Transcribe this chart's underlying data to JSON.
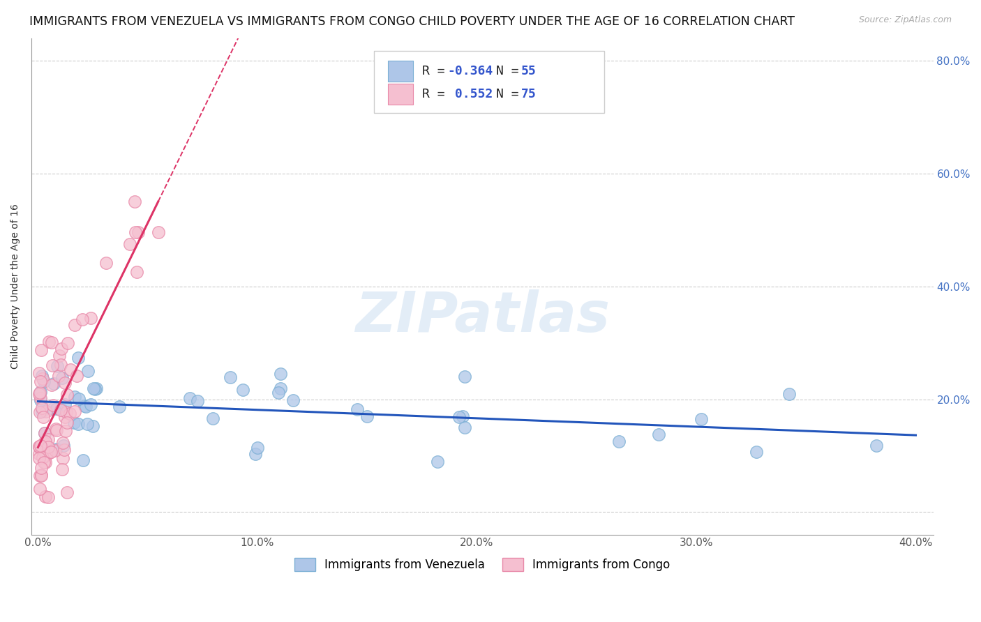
{
  "title": "IMMIGRANTS FROM VENEZUELA VS IMMIGRANTS FROM CONGO CHILD POVERTY UNDER THE AGE OF 16 CORRELATION CHART",
  "source": "Source: ZipAtlas.com",
  "ylabel": "Child Poverty Under the Age of 16",
  "xlim": [
    -0.003,
    0.408
  ],
  "ylim": [
    -0.04,
    0.84
  ],
  "xticks": [
    0.0,
    0.1,
    0.2,
    0.3,
    0.4
  ],
  "yticks": [
    0.0,
    0.2,
    0.4,
    0.6,
    0.8
  ],
  "xtick_labels": [
    "0.0%",
    "10.0%",
    "20.0%",
    "30.0%",
    "40.0%"
  ],
  "ytick_labels_right": [
    "",
    "20.0%",
    "40.0%",
    "60.0%",
    "80.0%"
  ],
  "venezuela_color": "#aec6e8",
  "venezuela_edge": "#7bafd4",
  "congo_color": "#f5bfd0",
  "congo_edge": "#e888a8",
  "line_venezuela_color": "#2255bb",
  "line_congo_color": "#dd3366",
  "watermark_text": "ZIPatlas",
  "background_color": "#ffffff",
  "grid_color": "#cccccc",
  "title_fontsize": 12.5,
  "axis_label_fontsize": 10,
  "tick_fontsize": 11,
  "legend_fontsize": 13,
  "source_fontsize": 9
}
